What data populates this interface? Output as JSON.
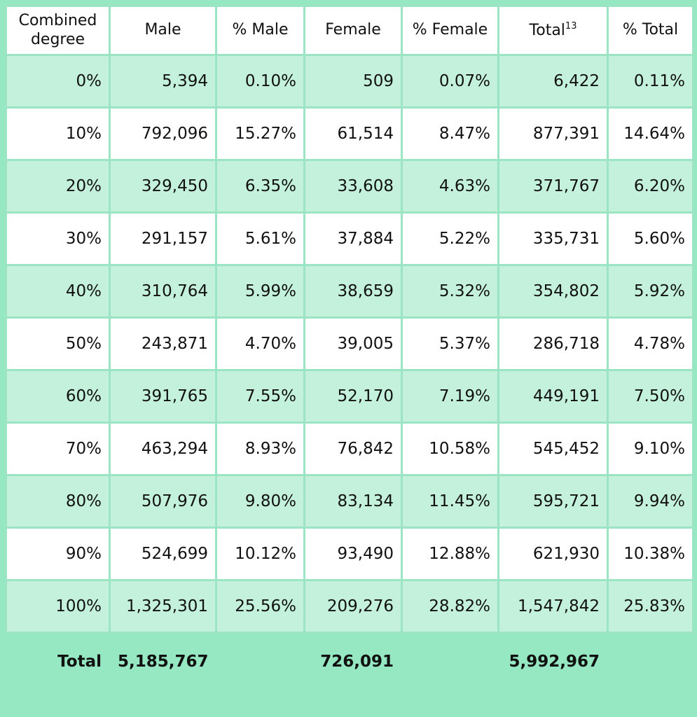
{
  "table": {
    "headers": {
      "degree": "Combined degree",
      "male": "Male",
      "pct_male": "% Male",
      "female": "Female",
      "pct_female": "% Female",
      "total": "Total",
      "total_footnote": "13",
      "pct_total": "% Total"
    },
    "rows": [
      {
        "degree": "0%",
        "male": "5,394",
        "pct_male": "0.10%",
        "female": "509",
        "pct_female": "0.07%",
        "total": "6,422",
        "pct_total": "0.11%"
      },
      {
        "degree": "10%",
        "male": "792,096",
        "pct_male": "15.27%",
        "female": "61,514",
        "pct_female": "8.47%",
        "total": "877,391",
        "pct_total": "14.64%"
      },
      {
        "degree": "20%",
        "male": "329,450",
        "pct_male": "6.35%",
        "female": "33,608",
        "pct_female": "4.63%",
        "total": "371,767",
        "pct_total": "6.20%"
      },
      {
        "degree": "30%",
        "male": "291,157",
        "pct_male": "5.61%",
        "female": "37,884",
        "pct_female": "5.22%",
        "total": "335,731",
        "pct_total": "5.60%"
      },
      {
        "degree": "40%",
        "male": "310,764",
        "pct_male": "5.99%",
        "female": "38,659",
        "pct_female": "5.32%",
        "total": "354,802",
        "pct_total": "5.92%"
      },
      {
        "degree": "50%",
        "male": "243,871",
        "pct_male": "4.70%",
        "female": "39,005",
        "pct_female": "5.37%",
        "total": "286,718",
        "pct_total": "4.78%"
      },
      {
        "degree": "60%",
        "male": "391,765",
        "pct_male": "7.55%",
        "female": "52,170",
        "pct_female": "7.19%",
        "total": "449,191",
        "pct_total": "7.50%"
      },
      {
        "degree": "70%",
        "male": "463,294",
        "pct_male": "8.93%",
        "female": "76,842",
        "pct_female": "10.58%",
        "total": "545,452",
        "pct_total": "9.10%"
      },
      {
        "degree": "80%",
        "male": "507,976",
        "pct_male": "9.80%",
        "female": "83,134",
        "pct_female": "11.45%",
        "total": "595,721",
        "pct_total": "9.94%"
      },
      {
        "degree": "90%",
        "male": "524,699",
        "pct_male": "10.12%",
        "female": "93,490",
        "pct_female": "12.88%",
        "total": "621,930",
        "pct_total": "10.38%"
      },
      {
        "degree": "100%",
        "male": "1,325,301",
        "pct_male": "25.56%",
        "female": "209,276",
        "pct_female": "28.82%",
        "total": "1,547,842",
        "pct_total": "25.83%"
      }
    ],
    "footer": {
      "label": "Total",
      "male": "5,185,767",
      "female": "726,091",
      "total": "5,992,967"
    }
  },
  "colors": {
    "frame": "#95e8c2",
    "shaded_row": "#c4f1dc",
    "plain_row": "#ffffff",
    "border": "#9ce5c4"
  }
}
